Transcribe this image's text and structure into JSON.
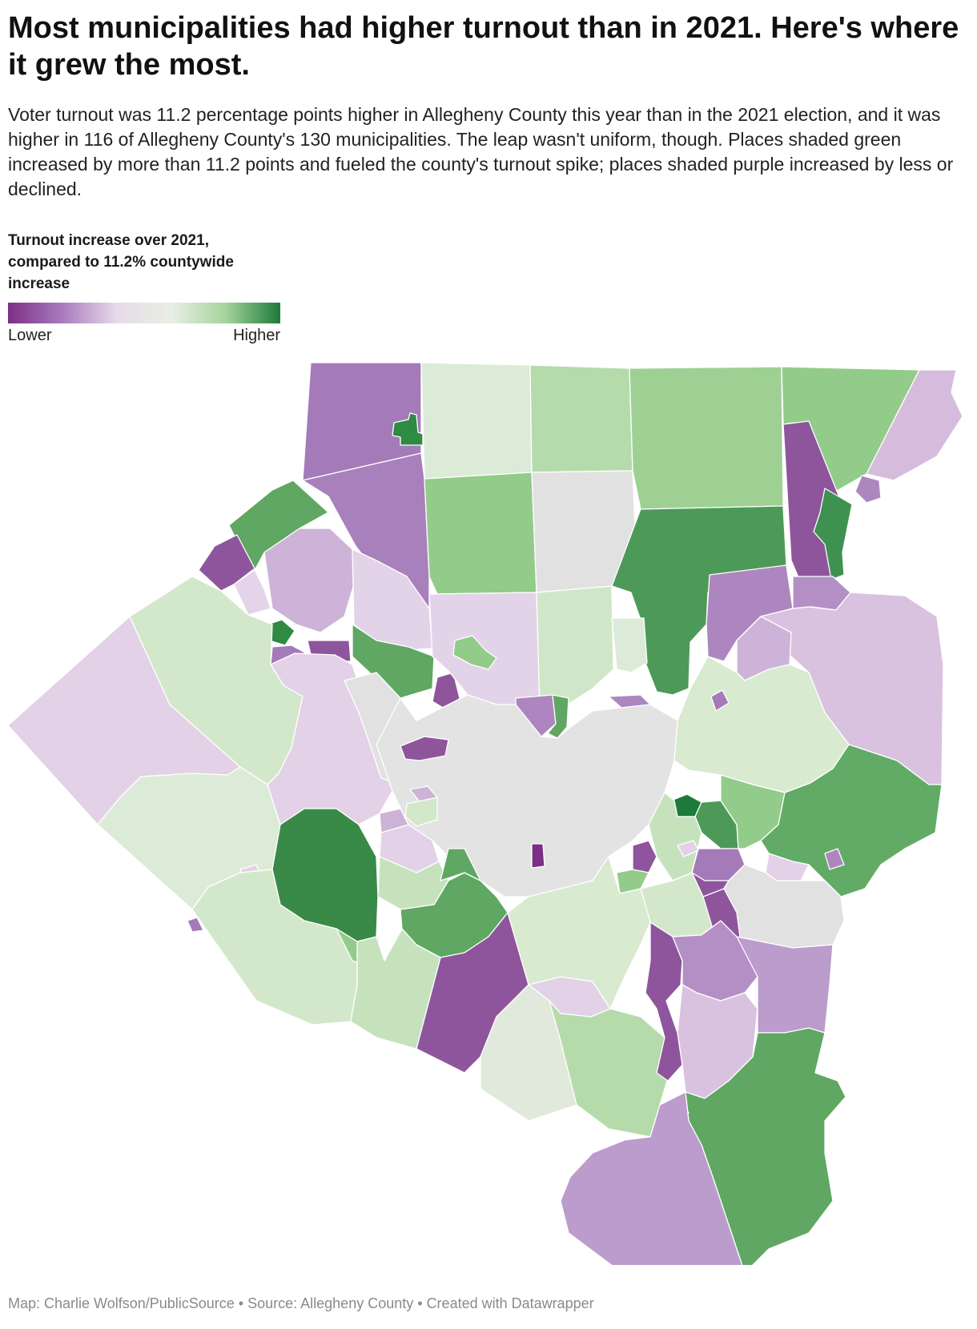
{
  "title": "Most municipalities had higher turnout than in 2021. Here's where it grew the most.",
  "description": "Voter turnout was 11.2 percentage points higher in Allegheny County this year than in the 2021 election, and it was higher in 116 of Allegheny County's 130 municipalities. The leap wasn't uniform, though. Places shaded green increased by more than 11.2 points and fueled the county's turnout spike; places shaded purple increased by less or declined.",
  "legend": {
    "title": "Turnout increase over 2021, compared to 11.2% countywide increase",
    "low_label": "Lower",
    "high_label": "Higher",
    "colors": [
      "#7b2f85",
      "#a97bbd",
      "#e7dbea",
      "#e8efe4",
      "#a5d39c",
      "#1d7a3a"
    ]
  },
  "footer": {
    "map_credit": "Map: Charlie Wolfson/PublicSource",
    "source": "Source: Allegheny County",
    "tool": "Created with Datawrapper",
    "separator": " • "
  }
}
